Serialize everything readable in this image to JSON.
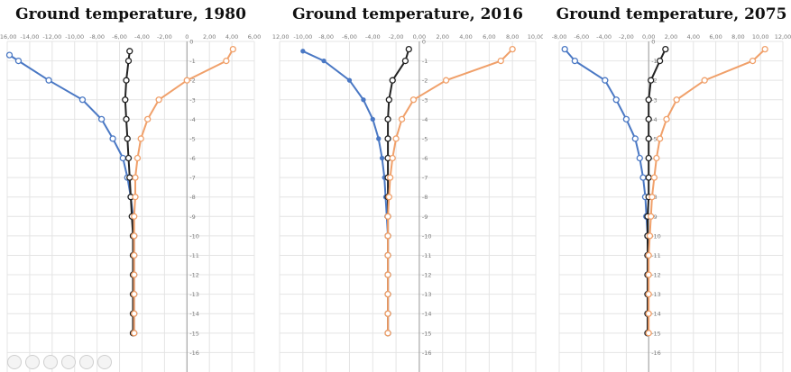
{
  "colors": {
    "winter": "#4a78c4",
    "annual": "#222222",
    "summer": "#f0a06a",
    "grid": "#e4e4e4",
    "axis": "#9a9a9a",
    "tick": "#7a7a7a"
  },
  "chart_data": [
    {
      "type": "line",
      "title": "Ground temperature, 1980",
      "xlim": [
        -16,
        6
      ],
      "xticks": [
        "-16,00",
        "-14,00",
        "-12,00",
        "-10,00",
        "-8,00",
        "-6,00",
        "-4,00",
        "-2,00",
        "0",
        "2,00",
        "4,00",
        "6,00"
      ],
      "ylim": [
        -17,
        0
      ],
      "yticks": [
        "0",
        "-1",
        "-2",
        "-3",
        "-4",
        "-5",
        "-6",
        "-7",
        "-8",
        "-9",
        "-10",
        "-11",
        "-12",
        "-13",
        "-14",
        "-15",
        "-16"
      ],
      "series": [
        {
          "color": "winter",
          "marker": "open",
          "points": [
            [
              -15.8,
              -0.7
            ],
            [
              -15,
              -1
            ],
            [
              -12.3,
              -2
            ],
            [
              -9.3,
              -3
            ],
            [
              -7.6,
              -4
            ],
            [
              -6.6,
              -5
            ],
            [
              -5.7,
              -6
            ],
            [
              -5.3,
              -7
            ],
            [
              -5,
              -8
            ],
            [
              -4.8,
              -9
            ],
            [
              -4.7,
              -10
            ],
            [
              -4.7,
              -11
            ],
            [
              -4.7,
              -12
            ],
            [
              -4.7,
              -13
            ],
            [
              -4.7,
              -14
            ],
            [
              -4.7,
              -15
            ]
          ]
        },
        {
          "color": "annual",
          "marker": "open",
          "points": [
            [
              -5.1,
              -0.5
            ],
            [
              -5.2,
              -1
            ],
            [
              -5.4,
              -2
            ],
            [
              -5.5,
              -3
            ],
            [
              -5.4,
              -4
            ],
            [
              -5.3,
              -5
            ],
            [
              -5.2,
              -6
            ],
            [
              -5.1,
              -7
            ],
            [
              -5,
              -8
            ],
            [
              -4.9,
              -9
            ],
            [
              -4.8,
              -10
            ],
            [
              -4.8,
              -11
            ],
            [
              -4.8,
              -12
            ],
            [
              -4.8,
              -13
            ],
            [
              -4.8,
              -14
            ],
            [
              -4.8,
              -15
            ]
          ]
        },
        {
          "color": "summer",
          "marker": "open",
          "points": [
            [
              4.1,
              -0.4
            ],
            [
              3.5,
              -1
            ],
            [
              0,
              -2
            ],
            [
              -2.5,
              -3
            ],
            [
              -3.5,
              -4
            ],
            [
              -4.1,
              -5
            ],
            [
              -4.4,
              -6
            ],
            [
              -4.6,
              -7
            ],
            [
              -4.6,
              -8
            ],
            [
              -4.7,
              -9
            ],
            [
              -4.7,
              -10
            ],
            [
              -4.7,
              -11
            ],
            [
              -4.7,
              -12
            ],
            [
              -4.7,
              -13
            ],
            [
              -4.7,
              -14
            ],
            [
              -4.7,
              -15
            ]
          ]
        }
      ]
    },
    {
      "type": "line",
      "title": "Ground temperature, 2016",
      "xlim": [
        -12,
        10
      ],
      "xticks": [
        "-12,00",
        "-10,00",
        "-8,00",
        "-6,00",
        "-4,00",
        "-2,00",
        "0,00",
        "2,00",
        "4,00",
        "6,00",
        "8,00",
        "10,00"
      ],
      "ylim": [
        -17,
        0
      ],
      "yticks": [
        "0",
        "-1",
        "-2",
        "-3",
        "-4",
        "-5",
        "-6",
        "-7",
        "-8",
        "-9",
        "-10",
        "-11",
        "-12",
        "-13",
        "-14",
        "-15",
        "-16"
      ],
      "series": [
        {
          "color": "winter",
          "marker": "filled",
          "points": [
            [
              -10,
              -0.5
            ],
            [
              -8.2,
              -1
            ],
            [
              -6,
              -2
            ],
            [
              -4.8,
              -3
            ],
            [
              -4,
              -4
            ],
            [
              -3.5,
              -5
            ],
            [
              -3.2,
              -6
            ],
            [
              -3,
              -7
            ],
            [
              -2.9,
              -8
            ],
            [
              -2.8,
              -9
            ],
            [
              -2.7,
              -10
            ],
            [
              -2.7,
              -11
            ],
            [
              -2.7,
              -12
            ],
            [
              -2.7,
              -13
            ],
            [
              -2.7,
              -14
            ],
            [
              -2.7,
              -15
            ]
          ]
        },
        {
          "color": "annual",
          "marker": "open",
          "points": [
            [
              -0.9,
              -0.4
            ],
            [
              -1.2,
              -1
            ],
            [
              -2.3,
              -2
            ],
            [
              -2.6,
              -3
            ],
            [
              -2.7,
              -4
            ],
            [
              -2.7,
              -5
            ],
            [
              -2.7,
              -6
            ],
            [
              -2.7,
              -7
            ],
            [
              -2.7,
              -8
            ],
            [
              -2.7,
              -9
            ],
            [
              -2.7,
              -10
            ],
            [
              -2.7,
              -11
            ],
            [
              -2.7,
              -12
            ],
            [
              -2.7,
              -13
            ],
            [
              -2.7,
              -14
            ],
            [
              -2.7,
              -15
            ]
          ]
        },
        {
          "color": "summer",
          "marker": "open",
          "points": [
            [
              8,
              -0.4
            ],
            [
              7,
              -1
            ],
            [
              2.3,
              -2
            ],
            [
              -0.5,
              -3
            ],
            [
              -1.5,
              -4
            ],
            [
              -2,
              -5
            ],
            [
              -2.3,
              -6
            ],
            [
              -2.5,
              -7
            ],
            [
              -2.6,
              -8
            ],
            [
              -2.7,
              -9
            ],
            [
              -2.7,
              -10
            ],
            [
              -2.7,
              -11
            ],
            [
              -2.7,
              -12
            ],
            [
              -2.7,
              -13
            ],
            [
              -2.7,
              -14
            ],
            [
              -2.7,
              -15
            ]
          ]
        }
      ]
    },
    {
      "type": "line",
      "title": "Ground temperature, 2075",
      "xlim": [
        -8,
        12
      ],
      "xticks": [
        "-8,00",
        "-6,00",
        "-4,00",
        "-2,00",
        "0,00",
        "2,00",
        "4,00",
        "6,00",
        "8,00",
        "10,00",
        "12,00"
      ],
      "ylim": [
        -17,
        0
      ],
      "yticks": [
        "0",
        "-1",
        "-2",
        "-3",
        "-4",
        "-5",
        "-6",
        "-7",
        "-8",
        "-9",
        "-10",
        "-11",
        "-12",
        "-13",
        "-14",
        "-15",
        "-16"
      ],
      "series": [
        {
          "color": "winter",
          "marker": "open",
          "points": [
            [
              -7.5,
              -0.4
            ],
            [
              -6.6,
              -1
            ],
            [
              -3.9,
              -2
            ],
            [
              -2.9,
              -3
            ],
            [
              -2,
              -4
            ],
            [
              -1.2,
              -5
            ],
            [
              -0.8,
              -6
            ],
            [
              -0.5,
              -7
            ],
            [
              -0.3,
              -8
            ],
            [
              -0.2,
              -9
            ],
            [
              -0.1,
              -10
            ],
            [
              -0.1,
              -11
            ],
            [
              -0.1,
              -12
            ],
            [
              -0.1,
              -13
            ],
            [
              -0.1,
              -14
            ],
            [
              -0.1,
              -15
            ]
          ]
        },
        {
          "color": "annual",
          "marker": "open",
          "points": [
            [
              1.5,
              -0.4
            ],
            [
              1,
              -1
            ],
            [
              0.2,
              -2
            ],
            [
              0,
              -3
            ],
            [
              0,
              -4
            ],
            [
              0,
              -5
            ],
            [
              0,
              -6
            ],
            [
              0,
              -7
            ],
            [
              0,
              -8
            ],
            [
              -0.1,
              -9
            ],
            [
              -0.1,
              -10
            ],
            [
              -0.1,
              -11
            ],
            [
              -0.1,
              -12
            ],
            [
              -0.1,
              -13
            ],
            [
              -0.1,
              -14
            ],
            [
              -0.1,
              -15
            ]
          ]
        },
        {
          "color": "summer",
          "marker": "open",
          "points": [
            [
              10.4,
              -0.4
            ],
            [
              9.3,
              -1
            ],
            [
              5,
              -2
            ],
            [
              2.5,
              -3
            ],
            [
              1.6,
              -4
            ],
            [
              1,
              -5
            ],
            [
              0.7,
              -6
            ],
            [
              0.5,
              -7
            ],
            [
              0.3,
              -8
            ],
            [
              0.2,
              -9
            ],
            [
              0.1,
              -10
            ],
            [
              0,
              -11
            ],
            [
              0,
              -12
            ],
            [
              0,
              -13
            ],
            [
              0,
              -14
            ],
            [
              0,
              -15
            ]
          ]
        }
      ]
    }
  ]
}
